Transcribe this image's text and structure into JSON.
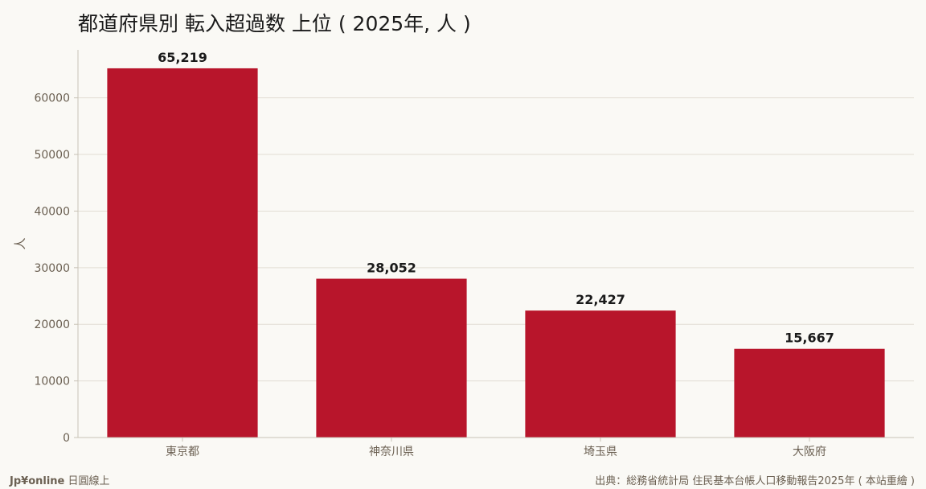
{
  "title": "都道府県別 転入超過数 上位 ( 2025年, 人 )",
  "footer": {
    "brand_bold": "Jp¥online",
    "brand_rest": " 日圓線上",
    "source": "出典：総務省統計局 住民基本台帳人口移動報告2025年 ( 本站重繪 )"
  },
  "colors": {
    "bar": "#b8152b",
    "grid": "#e2ddd4",
    "axis": "#c8c2b6",
    "tick_text": "#6b6052",
    "label_text": "#1a1a1a",
    "background": "#faf9f5"
  },
  "chart_data": {
    "type": "bar",
    "categories": [
      "東京都",
      "神奈川県",
      "埼玉県",
      "大阪府"
    ],
    "values": [
      65219,
      28052,
      22427,
      15667
    ],
    "value_labels": [
      "65,219",
      "28,052",
      "22,427",
      "15,667"
    ],
    "ylabel": "人",
    "ylim": [
      0,
      68478
    ],
    "yticks": [
      0,
      10000,
      20000,
      30000,
      40000,
      50000,
      60000
    ],
    "grid": true
  }
}
